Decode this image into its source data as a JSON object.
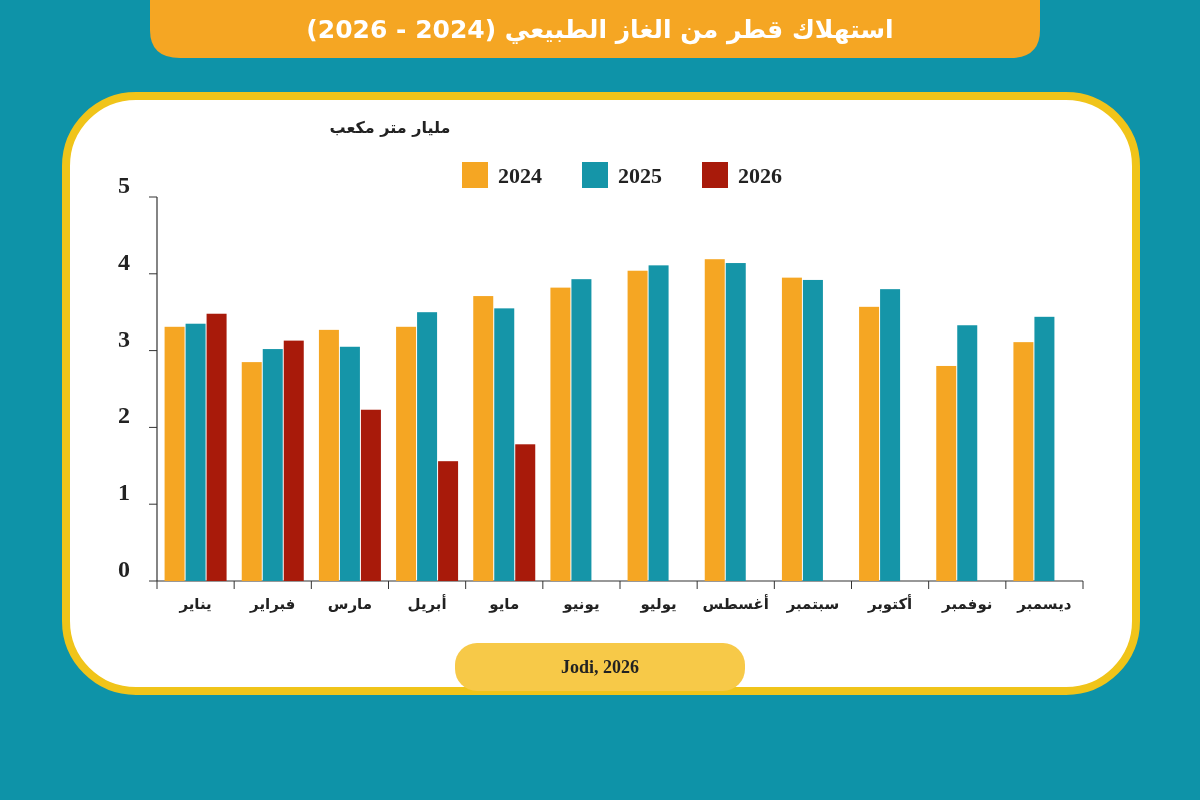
{
  "chart_data": {
    "type": "bar",
    "title": "استهلاك قطر من الغاز الطبيعي (2024 - 2026)",
    "ylabel": "مليار متر مكعب",
    "categories": [
      "يناير",
      "فبراير",
      "مارس",
      "أبريل",
      "مايو",
      "يونيو",
      "يوليو",
      "أغسطس",
      "سبتمبر",
      "أكتوبر",
      "نوفمبر",
      "ديسمبر"
    ],
    "series": [
      {
        "name": "2024",
        "color": "#f5a623",
        "values": [
          3.31,
          2.85,
          3.27,
          3.31,
          3.71,
          3.82,
          4.04,
          4.19,
          3.95,
          3.57,
          2.8,
          3.11
        ]
      },
      {
        "name": "2025",
        "color": "#1595a8",
        "values": [
          3.35,
          3.02,
          3.05,
          3.5,
          3.55,
          3.93,
          4.11,
          4.14,
          3.92,
          3.8,
          3.33,
          3.44
        ]
      },
      {
        "name": "2026",
        "color": "#a81a0a",
        "values": [
          3.48,
          3.13,
          2.23,
          1.56,
          1.78,
          null,
          null,
          null,
          null,
          null,
          null,
          null
        ]
      }
    ],
    "ylim": [
      0,
      5
    ],
    "yticks": [
      0,
      1,
      2,
      3,
      4,
      5
    ],
    "legend": "top",
    "annotations": [
      "Jodi, 2026"
    ]
  }
}
